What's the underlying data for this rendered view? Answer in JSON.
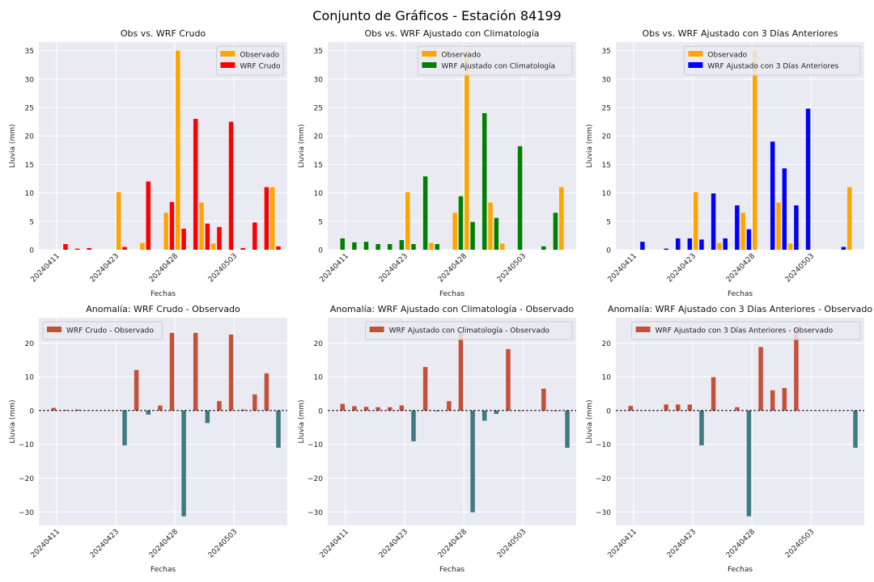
{
  "figure": {
    "title": "Conjunto de Gráficos - Estación 84199",
    "colors": {
      "background": "#eaeaf2",
      "grid": "#ffffff",
      "observed": "#ffa500",
      "wrf_crudo": "#ff0000",
      "wrf_clim": "#008000",
      "wrf_3d": "#0000ff",
      "anomaly_positive": "#c4503a",
      "anomaly_negative": "#3e7a80",
      "zero_line": "#000000"
    }
  },
  "chart_data": [
    {
      "type": "bar",
      "title": "Obs vs. WRF Crudo",
      "xlabel": "Fechas",
      "ylabel": "Lluvia (mm)",
      "ylim": [
        0,
        36.5
      ],
      "yticks": [
        0,
        5,
        10,
        15,
        20,
        25,
        30,
        35
      ],
      "xlim": [
        -1.5,
        40.5
      ],
      "xticks": [
        {
          "x": 1.5,
          "label": "20240411"
        },
        {
          "x": 11.5,
          "label": "20240423"
        },
        {
          "x": 21.5,
          "label": "20240428"
        },
        {
          "x": 31.5,
          "label": "20240503"
        }
      ],
      "legend_position": "top-right",
      "series": [
        {
          "name": "Observado",
          "color_key": "observed",
          "offset": 0,
          "points": [
            [
              12,
              10.1
            ],
            [
              16,
              1.2
            ],
            [
              20,
              6.5
            ],
            [
              22,
              35.0
            ],
            [
              26,
              8.3
            ],
            [
              28,
              1.1
            ],
            [
              38,
              11.0
            ]
          ]
        },
        {
          "name": "WRF Crudo",
          "color_key": "wrf_crudo",
          "offset": 1,
          "points": [
            [
              2,
              1.0
            ],
            [
              4,
              0.2
            ],
            [
              6,
              0.3
            ],
            [
              12,
              0.5
            ],
            [
              16,
              12.0
            ],
            [
              20,
              8.4
            ],
            [
              22,
              3.7
            ],
            [
              24,
              23.0
            ],
            [
              26,
              4.6
            ],
            [
              28,
              4.0
            ],
            [
              30,
              22.5
            ],
            [
              32,
              0.3
            ],
            [
              34,
              4.8
            ],
            [
              36,
              11.0
            ],
            [
              38,
              0.6
            ]
          ]
        }
      ]
    },
    {
      "type": "bar",
      "title": "Obs vs. WRF Ajustado con Climatología",
      "xlabel": "Fechas",
      "ylabel": "Lluvia (mm)",
      "ylim": [
        0,
        36.5
      ],
      "yticks": [
        0,
        5,
        10,
        15,
        20,
        25,
        30,
        35
      ],
      "xlim": [
        -1.5,
        40.5
      ],
      "xticks": [
        {
          "x": 1.5,
          "label": "20240411"
        },
        {
          "x": 11.5,
          "label": "20240423"
        },
        {
          "x": 21.5,
          "label": "20240428"
        },
        {
          "x": 31.5,
          "label": "20240503"
        }
      ],
      "legend_position": "top-right",
      "series": [
        {
          "name": "Observado",
          "color_key": "observed",
          "offset": 0,
          "points": [
            [
              12,
              10.1
            ],
            [
              16,
              1.2
            ],
            [
              20,
              6.5
            ],
            [
              22,
              35.0
            ],
            [
              26,
              8.3
            ],
            [
              28,
              1.1
            ],
            [
              38,
              11.0
            ]
          ]
        },
        {
          "name": "WRF Ajustado con Climatología",
          "color_key": "wrf_clim",
          "offset": 1,
          "points": [
            [
              0,
              2.0
            ],
            [
              2,
              1.3
            ],
            [
              4,
              1.4
            ],
            [
              6,
              1.0
            ],
            [
              8,
              1.0
            ],
            [
              10,
              1.7
            ],
            [
              12,
              1.0
            ],
            [
              14,
              12.9
            ],
            [
              16,
              1.0
            ],
            [
              20,
              9.4
            ],
            [
              22,
              4.9
            ],
            [
              24,
              24.0
            ],
            [
              26,
              5.6
            ],
            [
              30,
              18.2
            ],
            [
              34,
              0.6
            ],
            [
              36,
              6.5
            ]
          ]
        }
      ]
    },
    {
      "type": "bar",
      "title": "Obs vs. WRF Ajustado con 3 Días Anteriores",
      "xlabel": "Fechas",
      "ylabel": "Lluvia (mm)",
      "ylim": [
        0,
        36.5
      ],
      "yticks": [
        0,
        5,
        10,
        15,
        20,
        25,
        30,
        35
      ],
      "xlim": [
        -1.5,
        40.5
      ],
      "xticks": [
        {
          "x": 1.5,
          "label": "20240411"
        },
        {
          "x": 11.5,
          "label": "20240423"
        },
        {
          "x": 21.5,
          "label": "20240428"
        },
        {
          "x": 31.5,
          "label": "20240503"
        }
      ],
      "legend_position": "top-right",
      "series": [
        {
          "name": "Observado",
          "color_key": "observed",
          "offset": 0,
          "points": [
            [
              12,
              10.1
            ],
            [
              16,
              1.2
            ],
            [
              20,
              6.5
            ],
            [
              22,
              35.0
            ],
            [
              26,
              8.3
            ],
            [
              28,
              1.1
            ],
            [
              38,
              11.0
            ]
          ]
        },
        {
          "name": "WRF Ajustado con 3 Días Anteriores",
          "color_key": "wrf_3d",
          "offset": 1,
          "points": [
            [
              2,
              1.4
            ],
            [
              6,
              0.2
            ],
            [
              8,
              2.0
            ],
            [
              10,
              2.0
            ],
            [
              12,
              1.8
            ],
            [
              14,
              9.9
            ],
            [
              16,
              2.0
            ],
            [
              18,
              7.8
            ],
            [
              20,
              3.6
            ],
            [
              24,
              19.0
            ],
            [
              26,
              14.3
            ],
            [
              28,
              7.8
            ],
            [
              30,
              24.8
            ],
            [
              36,
              0.5
            ]
          ]
        }
      ]
    },
    {
      "type": "bar",
      "title": "Anomalía: WRF Crudo - Observado",
      "xlabel": "Fechas",
      "ylabel": "Lluvia (mm)",
      "ylim": [
        -34,
        27.5
      ],
      "yticks": [
        -30,
        -20,
        -10,
        0,
        10,
        20
      ],
      "xlim": [
        -1.5,
        40.5
      ],
      "xticks": [
        {
          "x": 1.5,
          "label": "20240411"
        },
        {
          "x": 11.5,
          "label": "20240423"
        },
        {
          "x": 21.5,
          "label": "20240428"
        },
        {
          "x": 31.5,
          "label": "20240503"
        }
      ],
      "legend_position": "top-left",
      "series": [
        {
          "name": "WRF Crudo - Observado",
          "offset": 1,
          "points": [
            [
              0,
              0.8
            ],
            [
              2,
              0.2
            ],
            [
              4,
              0.3
            ],
            [
              12,
              -10.3
            ],
            [
              14,
              12.0
            ],
            [
              16,
              -1.2
            ],
            [
              18,
              1.5
            ],
            [
              20,
              23.0
            ],
            [
              22,
              -31.3
            ],
            [
              24,
              23.0
            ],
            [
              26,
              -3.7
            ],
            [
              28,
              2.8
            ],
            [
              30,
              22.5
            ],
            [
              32,
              0.3
            ],
            [
              34,
              4.8
            ],
            [
              36,
              11.0
            ],
            [
              38,
              -11.0
            ]
          ]
        }
      ]
    },
    {
      "type": "bar",
      "title": "Anomalía: WRF Ajustado con Climatología - Observado",
      "xlabel": "Fechas",
      "ylabel": "Lluvia (mm)",
      "ylim": [
        -34,
        27.5
      ],
      "yticks": [
        -30,
        -20,
        -10,
        0,
        10,
        20
      ],
      "xlim": [
        -1.5,
        40.5
      ],
      "xticks": [
        {
          "x": 1.5,
          "label": "20240411"
        },
        {
          "x": 11.5,
          "label": "20240423"
        },
        {
          "x": 21.5,
          "label": "20240428"
        },
        {
          "x": 31.5,
          "label": "20240503"
        }
      ],
      "legend_position": "top-right",
      "series": [
        {
          "name": "WRF Ajustado con Climatología - Observado",
          "offset": 1,
          "points": [
            [
              0,
              2.0
            ],
            [
              2,
              1.3
            ],
            [
              4,
              1.1
            ],
            [
              6,
              1.0
            ],
            [
              8,
              1.0
            ],
            [
              10,
              1.5
            ],
            [
              12,
              -9.1
            ],
            [
              14,
              12.9
            ],
            [
              16,
              -0.2
            ],
            [
              18,
              2.8
            ],
            [
              20,
              23.5
            ],
            [
              22,
              -30.1
            ],
            [
              24,
              -3.0
            ],
            [
              26,
              -1.0
            ],
            [
              28,
              18.2
            ],
            [
              30,
              0.0
            ],
            [
              34,
              6.5
            ],
            [
              36,
              0.0
            ],
            [
              38,
              -11.0
            ]
          ]
        }
      ]
    },
    {
      "type": "bar",
      "title": "Anomalía: WRF Ajustado con 3 Días Anteriores - Observado",
      "xlabel": "Fechas",
      "ylabel": "Lluvia (mm)",
      "ylim": [
        -34,
        27.5
      ],
      "yticks": [
        -30,
        -20,
        -10,
        0,
        10,
        20
      ],
      "xlim": [
        -1.5,
        40.5
      ],
      "xticks": [
        {
          "x": 1.5,
          "label": "20240411"
        },
        {
          "x": 11.5,
          "label": "20240423"
        },
        {
          "x": 21.5,
          "label": "20240428"
        },
        {
          "x": 31.5,
          "label": "20240503"
        }
      ],
      "legend_position": "top-right",
      "series": [
        {
          "name": "WRF Ajustado con 3 Días Anteriores - Observado",
          "offset": 1,
          "points": [
            [
              0,
              1.4
            ],
            [
              6,
              1.8
            ],
            [
              8,
              1.8
            ],
            [
              10,
              1.8
            ],
            [
              12,
              -10.3
            ],
            [
              14,
              9.9
            ],
            [
              18,
              1.0
            ],
            [
              20,
              -31.3
            ],
            [
              22,
              18.8
            ],
            [
              24,
              6.0
            ],
            [
              26,
              6.7
            ],
            [
              28,
              24.2
            ],
            [
              38,
              -11.0
            ]
          ]
        }
      ]
    }
  ]
}
